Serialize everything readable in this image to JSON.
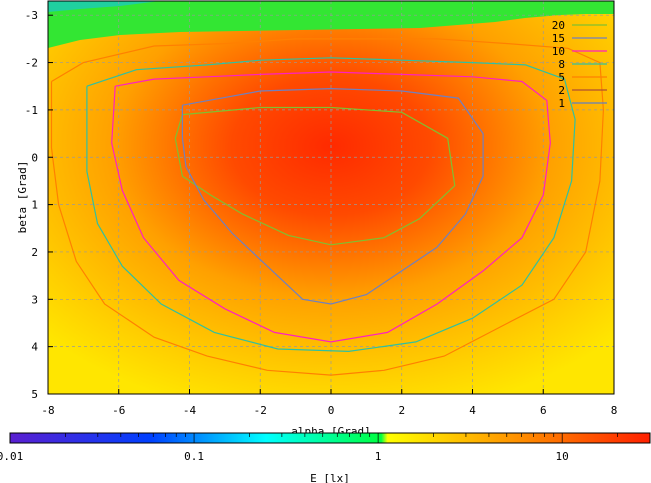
{
  "chart_data": {
    "type": "heatmap",
    "xlabel": "alpha [Grad]",
    "ylabel": "beta [Grad]",
    "xlim": [
      -8,
      8
    ],
    "ylim": [
      5,
      -3.3
    ],
    "grid": true,
    "x_ticks": [
      -8,
      -6,
      -4,
      -2,
      0,
      2,
      4,
      6,
      8
    ],
    "x_tick_labels": [
      "-8",
      "-6",
      "-4",
      "-2",
      "0",
      "2",
      "4",
      "6",
      "8"
    ],
    "y_ticks": [
      -3,
      -2,
      -1,
      0,
      1,
      2,
      3,
      4,
      5
    ],
    "y_tick_labels": [
      "-3",
      "-2",
      "-1",
      "0",
      "1",
      "2",
      "3",
      "4",
      "5"
    ],
    "colorbar": {
      "label": "E [lx]",
      "scale": "log",
      "range": [
        0.01,
        30
      ],
      "ticks": [
        0.01,
        0.1,
        1,
        10
      ],
      "tick_labels": [
        "0.01",
        "0.1",
        "1",
        "10"
      ],
      "stops": [
        "#5a1fd0",
        "#0000ff",
        "#00ffff",
        "#00ff30",
        "#ffff00",
        "#ff0000"
      ]
    },
    "legend_position": "top-right",
    "contour_levels": [
      {
        "level": "20",
        "color": "#80c030"
      },
      {
        "level": "15",
        "color": "#7080c0"
      },
      {
        "level": "10",
        "color": "#ff20c0"
      },
      {
        "level": "8",
        "color": "#30c0a0"
      },
      {
        "level": "5",
        "color": "#ff8000"
      },
      {
        "level": "2",
        "color": "#b05030"
      },
      {
        "level": "1",
        "color": "#6080c0"
      }
    ],
    "contours": [
      {
        "level": "20",
        "points": [
          [
            -4.2,
            -0.9
          ],
          [
            -2,
            -1.05
          ],
          [
            0,
            -1.05
          ],
          [
            2,
            -0.95
          ],
          [
            3.3,
            -0.4
          ],
          [
            3.5,
            0.6
          ],
          [
            2.5,
            1.3
          ],
          [
            1.5,
            1.7
          ],
          [
            0,
            1.85
          ],
          [
            -1.2,
            1.65
          ],
          [
            -2.5,
            1.2
          ],
          [
            -3.4,
            0.8
          ],
          [
            -4.2,
            0.4
          ],
          [
            -4.4,
            -0.4
          ],
          [
            -4.2,
            -0.9
          ]
        ]
      },
      {
        "level": "15",
        "points": [
          [
            -4.2,
            -1.1
          ],
          [
            -2,
            -1.4
          ],
          [
            0,
            -1.45
          ],
          [
            2,
            -1.4
          ],
          [
            3.6,
            -1.25
          ],
          [
            4.3,
            -0.5
          ],
          [
            4.3,
            0.4
          ],
          [
            3.8,
            1.2
          ],
          [
            3,
            1.9
          ],
          [
            2,
            2.4
          ],
          [
            1,
            2.9
          ],
          [
            0,
            3.1
          ],
          [
            -0.8,
            3.0
          ],
          [
            -1.8,
            2.3
          ],
          [
            -2.8,
            1.6
          ],
          [
            -3.6,
            0.9
          ],
          [
            -4.1,
            0.2
          ],
          [
            -4.2,
            -0.4
          ],
          [
            -4.2,
            -1.1
          ]
        ]
      },
      {
        "level": "10",
        "points": [
          [
            -6.1,
            -1.5
          ],
          [
            -5,
            -1.65
          ],
          [
            -3.5,
            -1.7
          ],
          [
            -2,
            -1.75
          ],
          [
            0,
            -1.8
          ],
          [
            2,
            -1.75
          ],
          [
            4,
            -1.7
          ],
          [
            5.4,
            -1.6
          ],
          [
            6.1,
            -1.2
          ],
          [
            6.2,
            -0.3
          ],
          [
            6,
            0.8
          ],
          [
            5.4,
            1.7
          ],
          [
            4.3,
            2.4
          ],
          [
            3,
            3.1
          ],
          [
            1.6,
            3.7
          ],
          [
            0,
            3.9
          ],
          [
            -1.6,
            3.7
          ],
          [
            -3,
            3.2
          ],
          [
            -4.3,
            2.6
          ],
          [
            -5.3,
            1.7
          ],
          [
            -5.9,
            0.7
          ],
          [
            -6.2,
            -0.3
          ],
          [
            -6.1,
            -1.5
          ]
        ]
      },
      {
        "level": "8",
        "points": [
          [
            -6.9,
            -1.5
          ],
          [
            -5.5,
            -1.85
          ],
          [
            -3.5,
            -1.95
          ],
          [
            -2,
            -2.05
          ],
          [
            0,
            -2.1
          ],
          [
            2,
            -2.05
          ],
          [
            4,
            -2.0
          ],
          [
            5.5,
            -1.95
          ],
          [
            6.6,
            -1.65
          ],
          [
            6.9,
            -0.8
          ],
          [
            6.8,
            0.5
          ],
          [
            6.3,
            1.7
          ],
          [
            5.4,
            2.7
          ],
          [
            4,
            3.4
          ],
          [
            2.4,
            3.9
          ],
          [
            0.5,
            4.1
          ],
          [
            -1.5,
            4.05
          ],
          [
            -3.3,
            3.7
          ],
          [
            -4.8,
            3.1
          ],
          [
            -5.9,
            2.3
          ],
          [
            -6.6,
            1.4
          ],
          [
            -6.9,
            0.3
          ],
          [
            -6.9,
            -1.5
          ]
        ]
      },
      {
        "level": "5",
        "points": [
          [
            -7.9,
            -1.6
          ],
          [
            -7,
            -2.0
          ],
          [
            -5,
            -2.35
          ],
          [
            -3,
            -2.4
          ],
          [
            -1,
            -2.5
          ],
          [
            1,
            -2.5
          ],
          [
            3,
            -2.5
          ],
          [
            5,
            -2.4
          ],
          [
            6.7,
            -2.3
          ],
          [
            7.6,
            -2.0
          ],
          [
            7.7,
            -1.0
          ],
          [
            7.6,
            0.5
          ],
          [
            7.2,
            2.0
          ],
          [
            6.3,
            3.0
          ],
          [
            5,
            3.5
          ],
          [
            3.2,
            4.2
          ],
          [
            1.5,
            4.5
          ],
          [
            0,
            4.6
          ],
          [
            -1.8,
            4.5
          ],
          [
            -3.5,
            4.2
          ],
          [
            -5,
            3.8
          ],
          [
            -6.4,
            3.1
          ],
          [
            -7.2,
            2.2
          ],
          [
            -7.7,
            1.0
          ],
          [
            -7.9,
            -0.2
          ],
          [
            -7.9,
            -1.6
          ]
        ]
      }
    ],
    "values_description_grid": [
      [
        -8,
        -3.3,
        0.5
      ],
      [
        0,
        -3.3,
        0.8
      ],
      [
        8,
        -3.3,
        0.5
      ],
      [
        0,
        0,
        25
      ],
      [
        0,
        2,
        15
      ],
      [
        0,
        4,
        8
      ],
      [
        -6,
        0,
        5
      ],
      [
        6,
        0,
        5
      ],
      [
        -8,
        3,
        3
      ],
      [
        8,
        3,
        3
      ]
    ]
  }
}
